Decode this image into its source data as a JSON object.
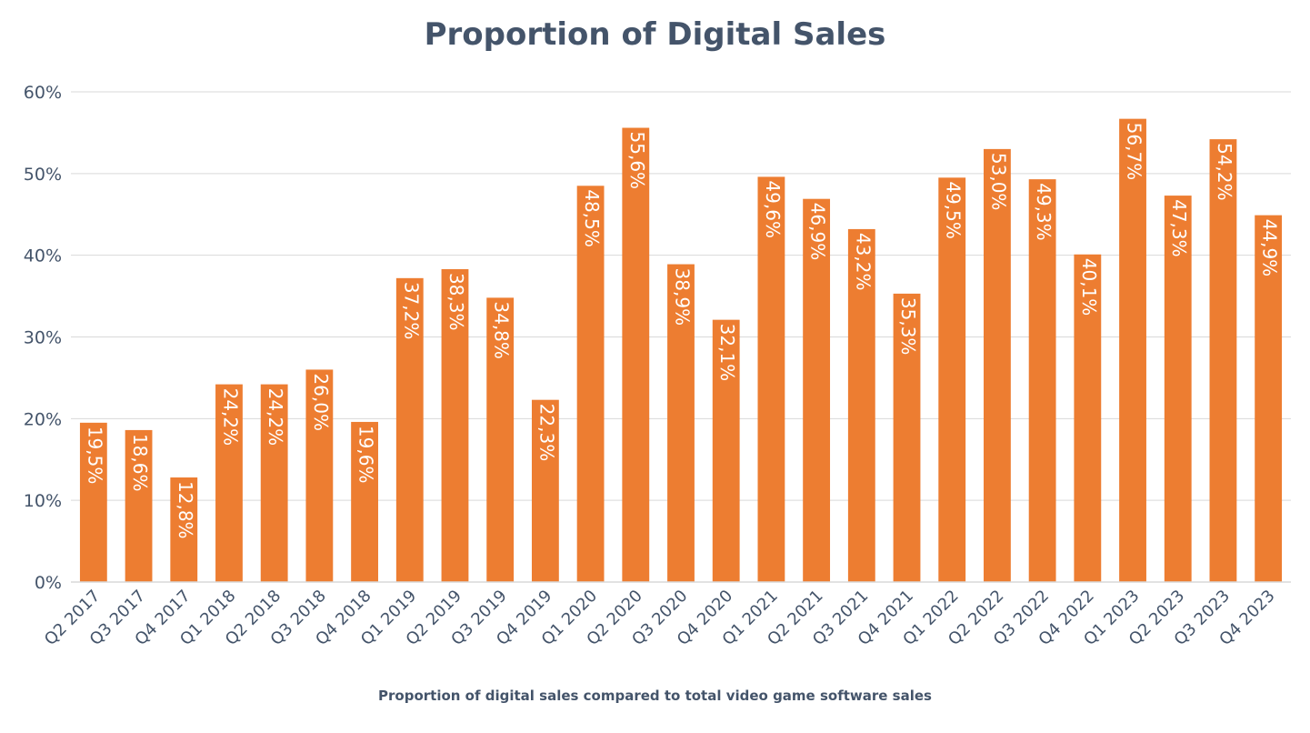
{
  "chart_data": {
    "type": "bar",
    "title": "Proportion of Digital Sales",
    "xlabel": "Proportion of digital sales compared to total video game software sales",
    "ylabel": "",
    "ylim": [
      0,
      60
    ],
    "yticks": [
      "0%",
      "10%",
      "20%",
      "30%",
      "40%",
      "50%",
      "60%"
    ],
    "grid": true,
    "legend": "none",
    "bar_color": "#ed7d31",
    "categories": [
      "Q2 2017",
      "Q3 2017",
      "Q4 2017",
      "Q1 2018",
      "Q2 2018",
      "Q3 2018",
      "Q4 2018",
      "Q1 2019",
      "Q2 2019",
      "Q3 2019",
      "Q4 2019",
      "Q1 2020",
      "Q2 2020",
      "Q3 2020",
      "Q4 2020",
      "Q1 2021",
      "Q2 2021",
      "Q3 2021",
      "Q4 2021",
      "Q1 2022",
      "Q2 2022",
      "Q3 2022",
      "Q4 2022",
      "Q1 2023",
      "Q2 2023",
      "Q3 2023",
      "Q4 2023"
    ],
    "values": [
      19.5,
      18.6,
      12.8,
      24.2,
      24.2,
      26.0,
      19.6,
      37.2,
      38.3,
      34.8,
      22.3,
      48.5,
      55.6,
      38.9,
      32.1,
      49.6,
      46.9,
      43.2,
      35.3,
      49.5,
      53.0,
      49.3,
      40.1,
      56.7,
      47.3,
      54.2,
      44.9
    ],
    "data_labels": [
      "19,5%",
      "18,6%",
      "12,8%",
      "24,2%",
      "24,2%",
      "26,0%",
      "19,6%",
      "37,2%",
      "38,3%",
      "34,8%",
      "22,3%",
      "48,5%",
      "55,6%",
      "38,9%",
      "32,1%",
      "49,6%",
      "46,9%",
      "43,2%",
      "35,3%",
      "49,5%",
      "53,0%",
      "49,3%",
      "40,1%",
      "56,7%",
      "47,3%",
      "54,2%",
      "44,9%"
    ]
  }
}
